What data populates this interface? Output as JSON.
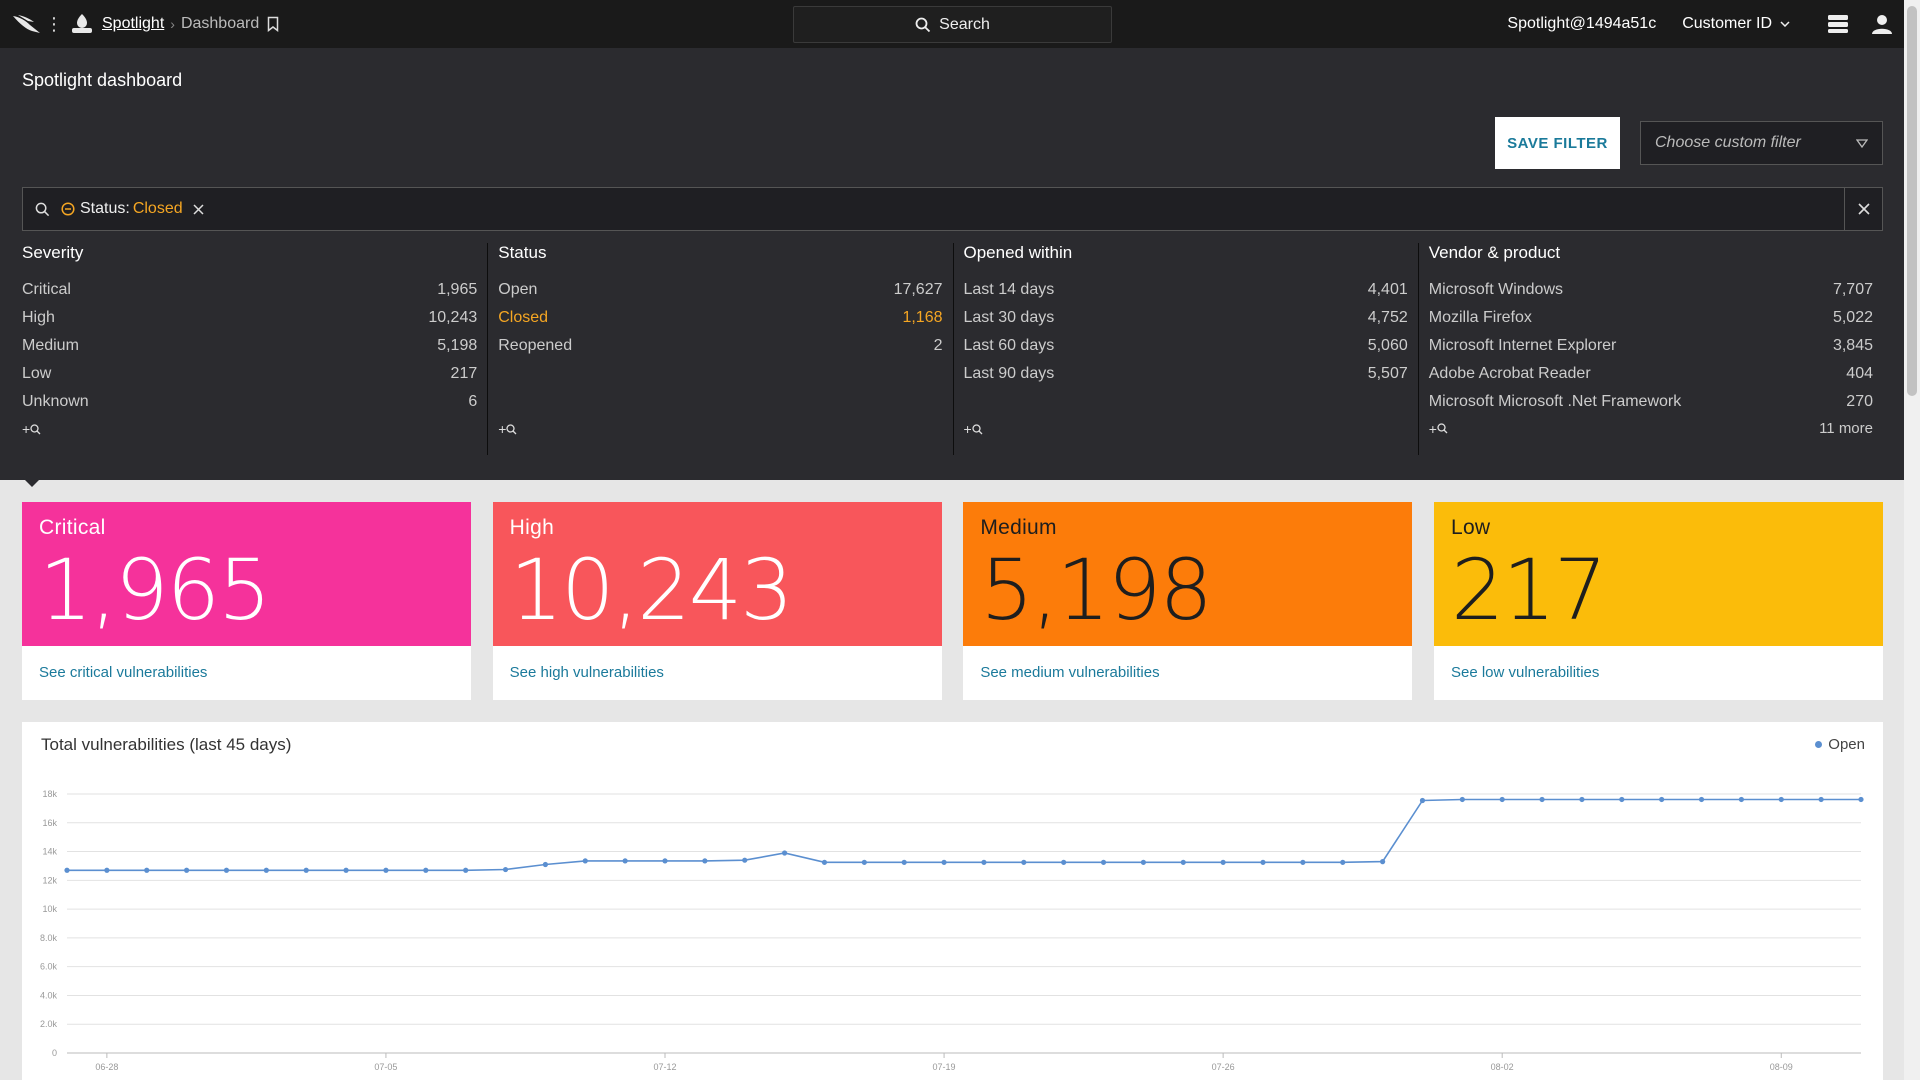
{
  "topbar": {
    "app_name": "Spotlight",
    "page_name": "Dashboard",
    "search_label": "Search",
    "user": "Spotlight@1494a51c",
    "customer_id_label": "Customer ID"
  },
  "page": {
    "title": "Spotlight dashboard",
    "save_filter_label": "SAVE FILTER",
    "custom_filter_placeholder": "Choose custom filter"
  },
  "filter": {
    "chip_key": "Status",
    "chip_sep": ":",
    "chip_value": "Closed"
  },
  "facets": [
    {
      "title": "Severity",
      "rows": [
        {
          "label": "Critical",
          "count": "1,965"
        },
        {
          "label": "High",
          "count": "10,243"
        },
        {
          "label": "Medium",
          "count": "5,198"
        },
        {
          "label": "Low",
          "count": "217"
        },
        {
          "label": "Unknown",
          "count": "6"
        }
      ],
      "more": ""
    },
    {
      "title": "Status",
      "rows": [
        {
          "label": "Open",
          "count": "17,627"
        },
        {
          "label": "Closed",
          "count": "1,168",
          "active": true
        },
        {
          "label": "Reopened",
          "count": "2"
        }
      ],
      "more": ""
    },
    {
      "title": "Opened within",
      "rows": [
        {
          "label": "Last 14 days",
          "count": "4,401"
        },
        {
          "label": "Last 30 days",
          "count": "4,752"
        },
        {
          "label": "Last 60 days",
          "count": "5,060"
        },
        {
          "label": "Last 90 days",
          "count": "5,507"
        }
      ],
      "more": ""
    },
    {
      "title": "Vendor & product",
      "rows": [
        {
          "label": "Microsoft Windows",
          "count": "7,707"
        },
        {
          "label": "Mozilla Firefox",
          "count": "5,022"
        },
        {
          "label": "Microsoft Internet Explorer",
          "count": "3,845"
        },
        {
          "label": "Adobe Acrobat Reader",
          "count": "404"
        },
        {
          "label": "Microsoft Microsoft .Net Framework",
          "count": "270"
        }
      ],
      "more": "11 more"
    }
  ],
  "cards": [
    {
      "label": "Critical",
      "value": "1,965",
      "link": "See critical vulnerabilities",
      "bg": "#f5329b",
      "fg": "#ffffff"
    },
    {
      "label": "High",
      "value": "10,243",
      "link": "See high vulnerabilities",
      "bg": "#f8565b",
      "fg": "#ffffff"
    },
    {
      "label": "Medium",
      "value": "5,198",
      "link": "See medium vulnerabilities",
      "bg": "#fc7c0a",
      "fg": "#1e1e1e"
    },
    {
      "label": "Low",
      "value": "217",
      "link": "See low vulnerabilities",
      "bg": "#fbbc0a",
      "fg": "#1e1e1e"
    }
  ],
  "colors": {
    "accent_orange": "#f5a623",
    "link_blue": "#1b7a9b",
    "line_blue": "#5b8fd0"
  },
  "chart_data": {
    "type": "line",
    "title": "Total vulnerabilities (last 45 days)",
    "legend": "top-right",
    "series": [
      {
        "name": "Open",
        "values": [
          12700,
          12700,
          12700,
          12700,
          12700,
          12700,
          12700,
          12700,
          12700,
          12700,
          12700,
          12750,
          13100,
          13350,
          13350,
          13350,
          13350,
          13400,
          13900,
          13250,
          13250,
          13250,
          13250,
          13250,
          13250,
          13250,
          13250,
          13250,
          13250,
          13250,
          13250,
          13250,
          13250,
          13300,
          17550,
          17620,
          17620,
          17620,
          17620,
          17620,
          17620,
          17620,
          17620,
          17620,
          17620,
          17620
        ]
      }
    ],
    "ylim": [
      0,
      18000
    ],
    "yticks": [
      "0",
      "2.0k",
      "4.0k",
      "6.0k",
      "8.0k",
      "10k",
      "12k",
      "14k",
      "16k",
      "18k"
    ],
    "xticks": [
      "06-28",
      "07-05",
      "07-12",
      "07-19",
      "07-26",
      "08-02",
      "08-09"
    ],
    "xtick_index": [
      1,
      8,
      15,
      22,
      29,
      36,
      43
    ],
    "grid": true
  }
}
